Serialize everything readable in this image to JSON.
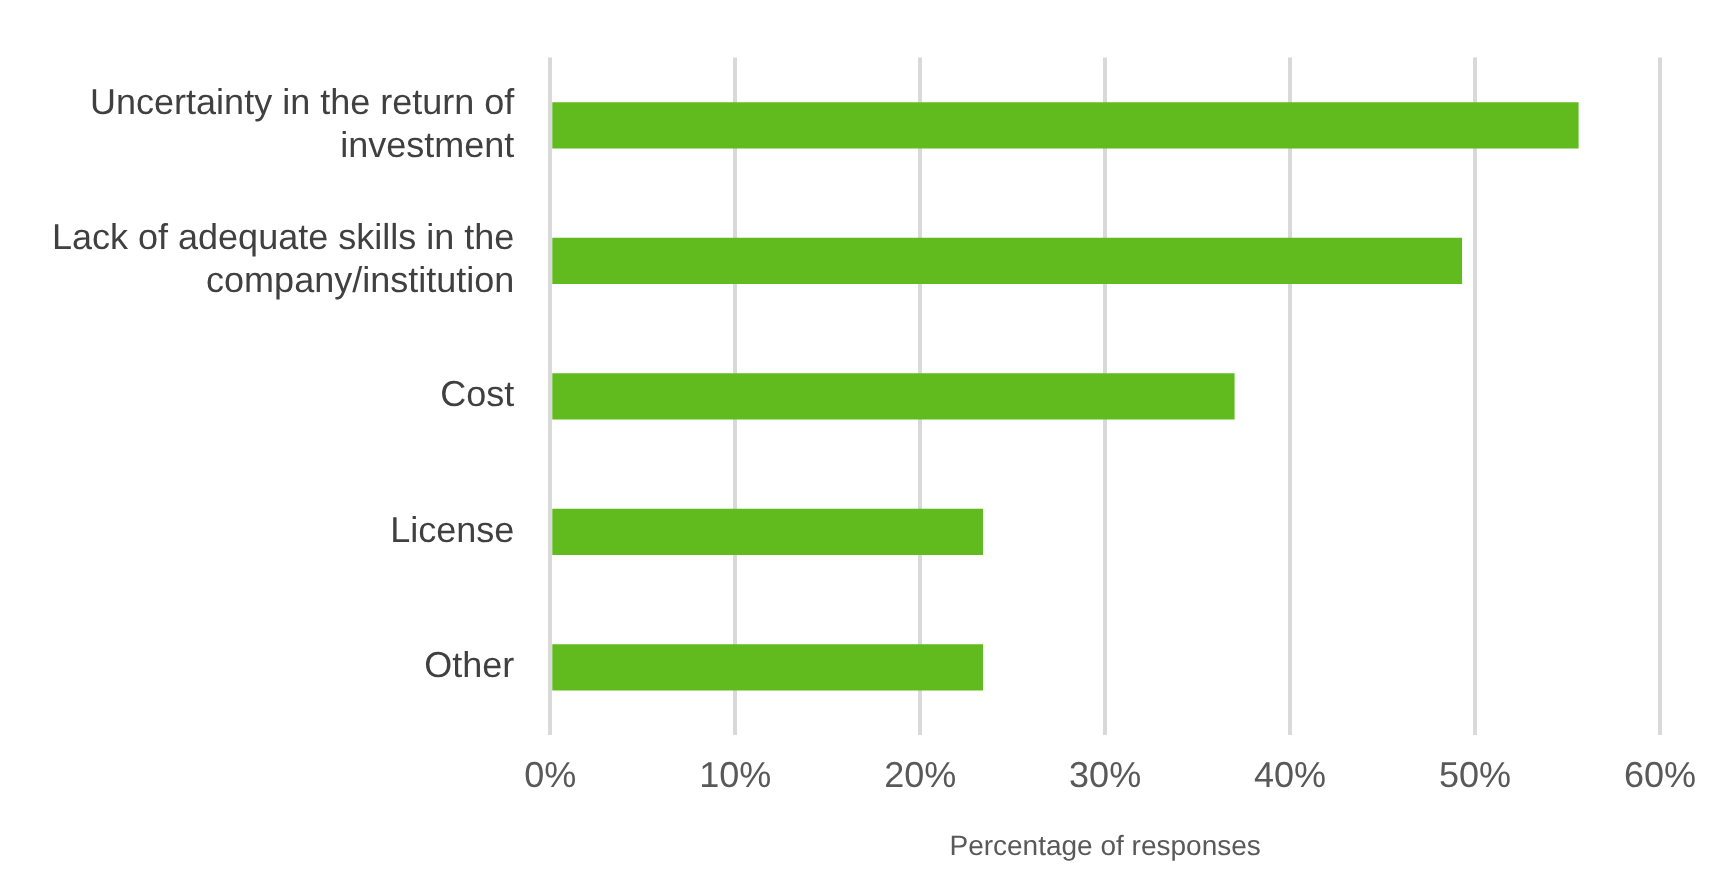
{
  "chart_data": {
    "type": "bar",
    "orientation": "horizontal",
    "xlabel": "Percentage of responses",
    "categories": [
      "Uncertainty in the return of investment",
      "Lack of adequate skills in the company/institution",
      "Cost",
      "License",
      "Other"
    ],
    "values": [
      55.6,
      49.3,
      37.0,
      23.4,
      23.4
    ],
    "color": "#61bb1f",
    "xlim": [
      0,
      60
    ],
    "xticks": [
      {
        "value": 0,
        "label": "0%"
      },
      {
        "value": 10,
        "label": "10%"
      },
      {
        "value": 20,
        "label": "20%"
      },
      {
        "value": 30,
        "label": "30%"
      },
      {
        "value": 40,
        "label": "40%"
      },
      {
        "value": 50,
        "label": "50%"
      },
      {
        "value": 60,
        "label": "60%"
      }
    ],
    "grid": "x",
    "legend": false
  }
}
